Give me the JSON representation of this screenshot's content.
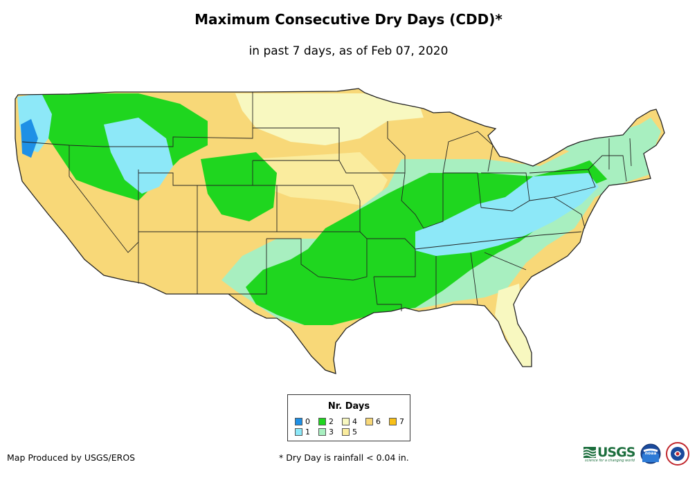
{
  "title": "Maximum Consecutive Dry Days (CDD)*",
  "subtitle": "in past 7 days, as of Feb 07, 2020",
  "legend": {
    "title": "Nr. Days",
    "items": [
      {
        "label": "0",
        "color": "#1e90e6"
      },
      {
        "label": "1",
        "color": "#8de8f8"
      },
      {
        "label": "2",
        "color": "#1fd61f"
      },
      {
        "label": "3",
        "color": "#a8efc0"
      },
      {
        "label": "4",
        "color": "#f8f8c0"
      },
      {
        "label": "5",
        "color": "#faec9e"
      },
      {
        "label": "6",
        "color": "#f8d878"
      },
      {
        "label": "7",
        "color": "#f8c018"
      }
    ]
  },
  "producer": "Map Produced by USGS/EROS",
  "footnote": "* Dry Day is rainfall < 0.04 in.",
  "logos": {
    "usgs": "USGS",
    "usgs_tagline": "science for a changing world",
    "noaa": "noaa"
  },
  "colors": {
    "state_border": "#222222",
    "background": "#ffffff"
  }
}
